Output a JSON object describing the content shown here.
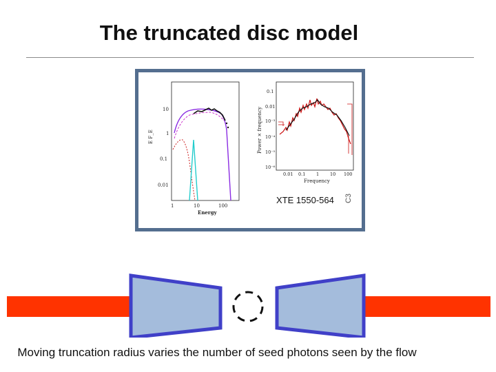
{
  "slide": {
    "title": "The truncated disc model",
    "caption": "Moving truncation radius varies the number of seed photons seen by the flow"
  },
  "figure": {
    "source_label": "XTE 1550-564",
    "cut_mark": "C3",
    "spectrum_panel": {
      "xlabel": "Energy",
      "ylabel": "E F_E",
      "x_ticks": [
        "1",
        "10",
        "100"
      ],
      "y_ticks": [
        "10",
        "1",
        "0.1",
        "0.01"
      ]
    },
    "power_panel": {
      "xlabel": "Frequency",
      "ylabel": "Power × frequency",
      "x_ticks": [
        "0.01",
        "0.1",
        "1",
        "10",
        "100"
      ],
      "y_ticks": [
        "0.1",
        "0.01",
        "10⁻³",
        "10⁻⁴",
        "10⁻⁵",
        "10⁻⁶"
      ]
    }
  },
  "colors": {
    "frame": "#546e8f",
    "jet": "#ff3300",
    "disc_fill": "#a4bcdc",
    "disc_stroke": "#4040c8",
    "spectrum_curve": "#111111",
    "model_purple": "#8a2be2",
    "model_magenta": "#cc33cc",
    "model_red": "#cc2222",
    "model_cyan": "#22cccc",
    "power_red": "#cc1111"
  }
}
